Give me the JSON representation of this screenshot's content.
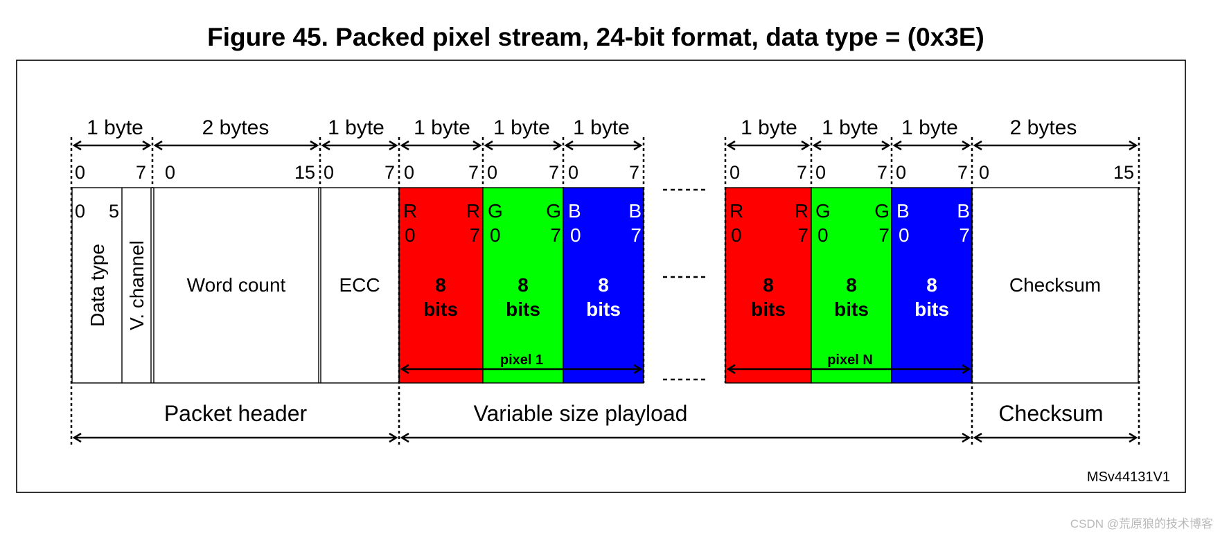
{
  "title": "Figure 45. Packed pixel stream, 24-bit format, data type = (0x3E)",
  "byte_labels": [
    "1 byte",
    "2 bytes",
    "1 byte",
    "1 byte",
    "1 byte",
    "1 byte",
    "1 byte",
    "1 byte",
    "1 byte",
    "2 bytes"
  ],
  "bit_ranges": [
    {
      "start": "0",
      "end": "7"
    },
    {
      "start": "0",
      "end": "15"
    },
    {
      "start": "0",
      "end": "7"
    },
    {
      "start": "0",
      "end": "7"
    },
    {
      "start": "0",
      "end": "7"
    },
    {
      "start": "0",
      "end": "7"
    },
    {
      "start": "0",
      "end": "7"
    },
    {
      "start": "0",
      "end": "7"
    },
    {
      "start": "0",
      "end": "7"
    },
    {
      "start": "0",
      "end": "15"
    }
  ],
  "header": {
    "data_type_label": "Data type",
    "data_type_bits": {
      "start": "0",
      "end": "5"
    },
    "vchannel_label": "V. channel",
    "word_count_label": "Word count",
    "ecc_label": "ECC"
  },
  "pixel_bytes": {
    "red": {
      "hi": "R",
      "lo": "R",
      "b0": "0",
      "b7": "7",
      "color": "#ff0000"
    },
    "green": {
      "hi": "G",
      "lo": "G",
      "b0": "0",
      "b7": "7",
      "color": "#00ff00"
    },
    "blue": {
      "hi": "B",
      "lo": "B",
      "b0": "0",
      "b7": "7",
      "color": "#0000ff"
    },
    "size_num": "8",
    "size_unit": "bits"
  },
  "pixel_labels": [
    "pixel 1",
    "pixel N"
  ],
  "checksum_label": "Checksum",
  "sections": {
    "packet_header": "Packet header",
    "payload": "Variable size playload",
    "checksum": "Checksum"
  },
  "figure_code": "MSv44131V1",
  "watermark": "CSDN @荒原狼的技术博客"
}
